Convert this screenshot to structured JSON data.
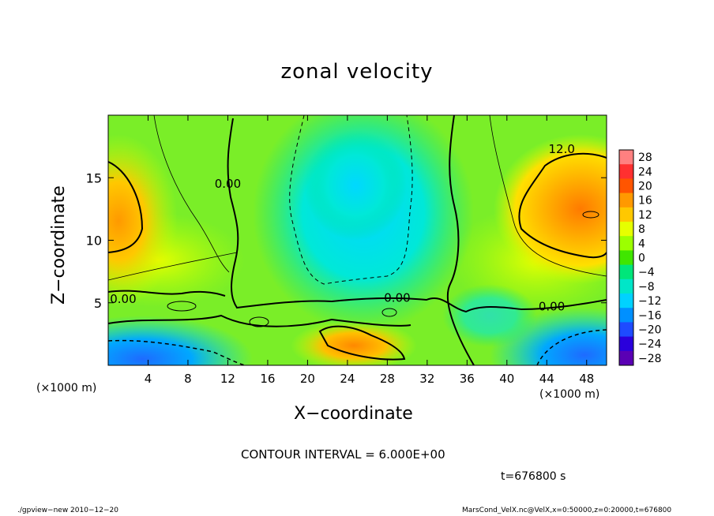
{
  "title": "zonal velocity",
  "xlabel": "X−coordinate",
  "ylabel": "Z−coordinate",
  "x_unit_left": "(×1000 m)",
  "x_unit_right": "(×1000 m)",
  "contour_interval_text": "CONTOUR INTERVAL = 6.000E+00",
  "time_text": "t=676800 s",
  "footer_left": "./gpview−new   2010−12−20",
  "footer_right": "MarsCond_VelX.nc@VelX,x=0:50000,z=0:20000,t=676800",
  "chart_data": {
    "type": "heatmap",
    "title": "zonal velocity",
    "xlabel": "X−coordinate",
    "ylabel": "Z−coordinate",
    "xlim": [
      0,
      50
    ],
    "ylim": [
      0,
      20
    ],
    "xticks": [
      4,
      8,
      12,
      16,
      20,
      24,
      28,
      32,
      36,
      40,
      44,
      48
    ],
    "yticks": [
      5,
      10,
      15
    ],
    "colorbar": {
      "levels": [
        28,
        24,
        20,
        16,
        12,
        8,
        4,
        0,
        -4,
        -8,
        -12,
        -16,
        -20,
        -24,
        -28
      ],
      "labels": [
        "28",
        "24",
        "20",
        "16",
        "12",
        "8",
        "4",
        "0",
        "−4",
        "−8",
        "−12",
        "−16",
        "−20",
        "−24",
        "−28"
      ],
      "colors": [
        "#ff8080",
        "#ff3030",
        "#ff5500",
        "#ff9900",
        "#ffc800",
        "#e6ff00",
        "#9cff00",
        "#40e600",
        "#00e67a",
        "#00e6c8",
        "#00d2ff",
        "#0090ff",
        "#1e4bff",
        "#2a00dc",
        "#5a00b4"
      ]
    },
    "contour_labels": [
      {
        "x": 12,
        "z": 14.5,
        "text": "0.00"
      },
      {
        "x": 1.5,
        "z": 5.3,
        "text": "0.00"
      },
      {
        "x": 29,
        "z": 5.4,
        "text": "0.00"
      },
      {
        "x": 44.5,
        "z": 4.7,
        "text": "0.00"
      },
      {
        "x": 45.5,
        "z": 17.3,
        "text": "12.0"
      }
    ],
    "regions": [
      {
        "x": 1.5,
        "z": 11.5,
        "value": 13
      },
      {
        "x": 47,
        "z": 12.5,
        "value": 16
      },
      {
        "x": 24,
        "z": 2,
        "value": 17
      },
      {
        "x": 25.5,
        "z": 14,
        "value": -10
      },
      {
        "x": 4,
        "z": 1,
        "value": -15
      },
      {
        "x": 48,
        "z": 1,
        "value": -15
      },
      {
        "x": 9,
        "z": 5,
        "value": 4
      },
      {
        "x": 30,
        "z": 3,
        "value": 3
      }
    ],
    "contour_interval": 6.0
  }
}
